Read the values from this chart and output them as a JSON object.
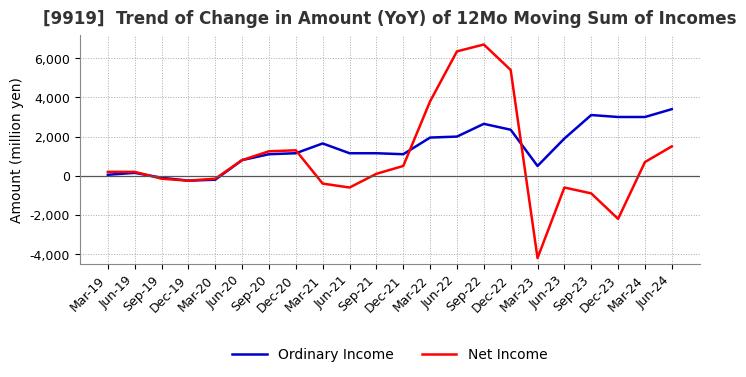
{
  "title": "[9919]  Trend of Change in Amount (YoY) of 12Mo Moving Sum of Incomes",
  "ylabel": "Amount (million yen)",
  "background_color": "#ffffff",
  "grid_color": "#aaaaaa",
  "ordinary_income_color": "#0000cc",
  "net_income_color": "#ff0000",
  "x_labels": [
    "Mar-19",
    "Jun-19",
    "Sep-19",
    "Dec-19",
    "Mar-20",
    "Jun-20",
    "Sep-20",
    "Dec-20",
    "Mar-21",
    "Jun-21",
    "Sep-21",
    "Dec-21",
    "Mar-22",
    "Jun-22",
    "Sep-22",
    "Dec-22",
    "Mar-23",
    "Jun-23",
    "Sep-23",
    "Dec-23",
    "Mar-24",
    "Jun-24"
  ],
  "ordinary_income": [
    50,
    150,
    -100,
    -250,
    -200,
    800,
    1100,
    1150,
    1650,
    1150,
    1150,
    1100,
    1950,
    2000,
    2650,
    2350,
    500,
    1900,
    3100,
    3000,
    3000,
    3400
  ],
  "net_income": [
    200,
    200,
    -150,
    -250,
    -150,
    800,
    1250,
    1300,
    -400,
    -600,
    100,
    500,
    3800,
    6350,
    6700,
    5400,
    -4200,
    -600,
    -900,
    -2200,
    700,
    1500
  ],
  "ylim": [
    -4500,
    7200
  ],
  "yticks": [
    -4000,
    -2000,
    0,
    2000,
    4000,
    6000
  ],
  "title_fontsize": 12,
  "label_fontsize": 10,
  "tick_fontsize": 9
}
